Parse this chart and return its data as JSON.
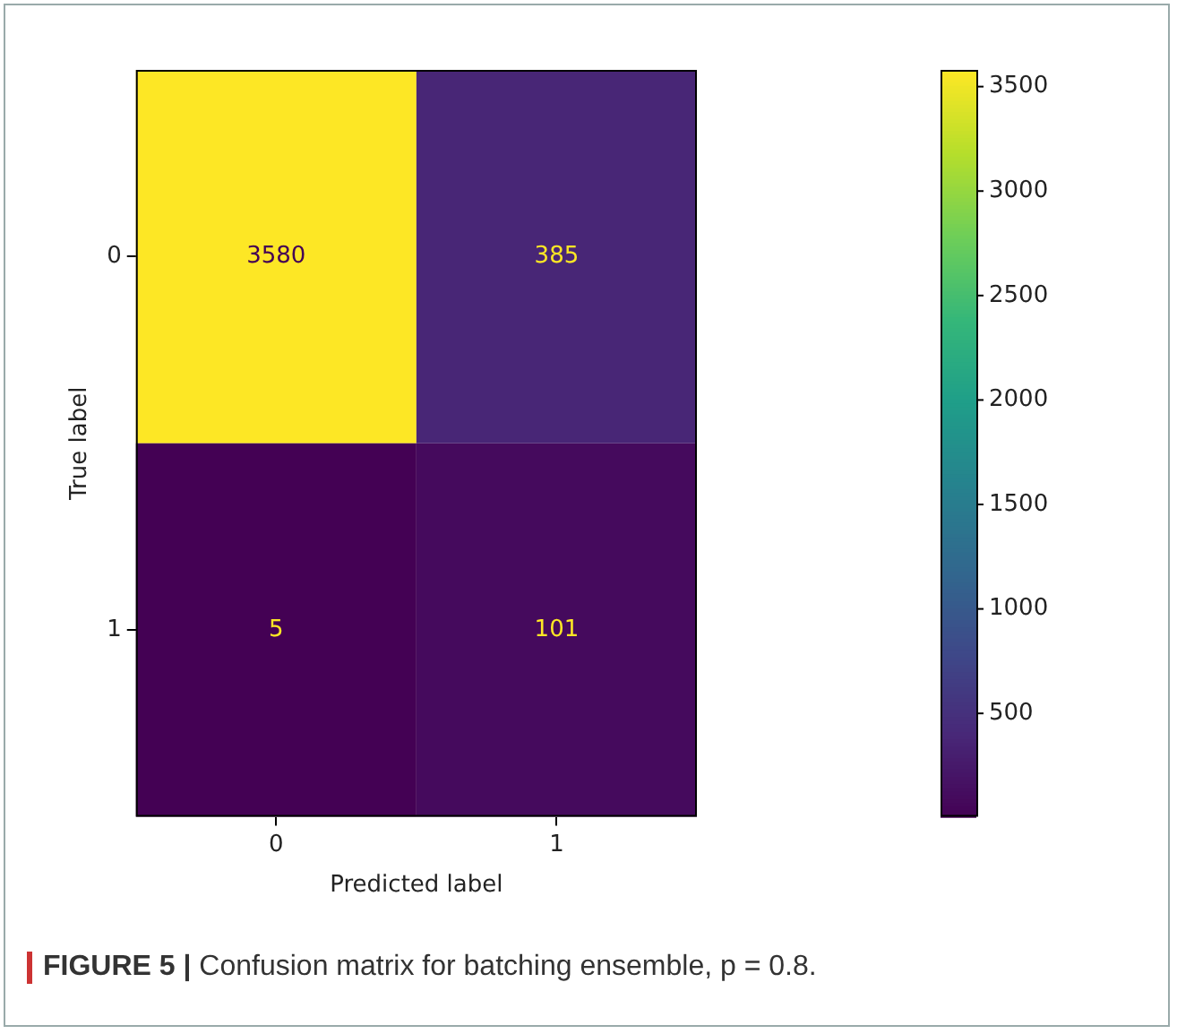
{
  "chart_data": {
    "type": "heatmap",
    "xlabel": "Predicted label",
    "ylabel": "True label",
    "categories": [
      "0",
      "1"
    ],
    "y_categories": [
      "0",
      "1"
    ],
    "cells": [
      [
        3580,
        385
      ],
      [
        5,
        101
      ]
    ],
    "clim": [
      5,
      3580
    ],
    "cticks": [
      500,
      1000,
      1500,
      2000,
      2500,
      3000,
      3500
    ],
    "data_labels": true,
    "annotations": [
      "FIGURE 5 | Confusion matrix for batching ensemble, p = 0.8."
    ]
  }
}
